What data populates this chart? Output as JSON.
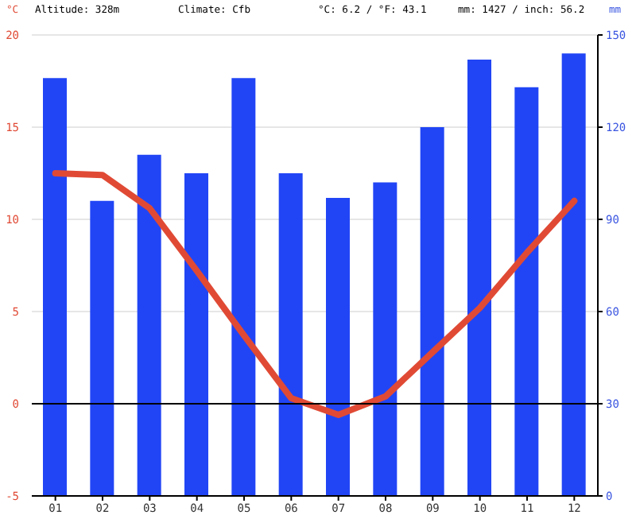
{
  "chart_data": {
    "type": "bar",
    "ylabel": "°C",
    "y2label": "mm",
    "annotations": [
      "Altitude: 328m",
      "Climate: Cfb",
      "°C: 6.2 / °F: 43.1",
      "mm: 1427 / inch: 56.2"
    ],
    "categories": [
      "01",
      "02",
      "03",
      "04",
      "05",
      "06",
      "07",
      "08",
      "09",
      "10",
      "11",
      "12"
    ],
    "series": [
      {
        "axis": "y2",
        "color": "#2145f5",
        "values": [
          136,
          96,
          111,
          105,
          136,
          105,
          97,
          102,
          120,
          142,
          133,
          144
        ]
      },
      {
        "type": "line",
        "axis": "y",
        "color": "#e04a35",
        "values": [
          12.5,
          12.4,
          10.6,
          7.2,
          3.7,
          0.3,
          -0.6,
          0.4,
          2.8,
          5.2,
          8.2,
          11.0
        ]
      }
    ],
    "ylim": [
      -5,
      20
    ],
    "yticks": [
      -5,
      0,
      5,
      10,
      15,
      20
    ],
    "y2lim": [
      0,
      150
    ],
    "y2ticks": [
      0,
      30,
      60,
      90,
      120,
      150
    ],
    "ref_lines": [
      {
        "axis": "y",
        "value": 0,
        "color": "#000000"
      }
    ],
    "grid": "y"
  }
}
